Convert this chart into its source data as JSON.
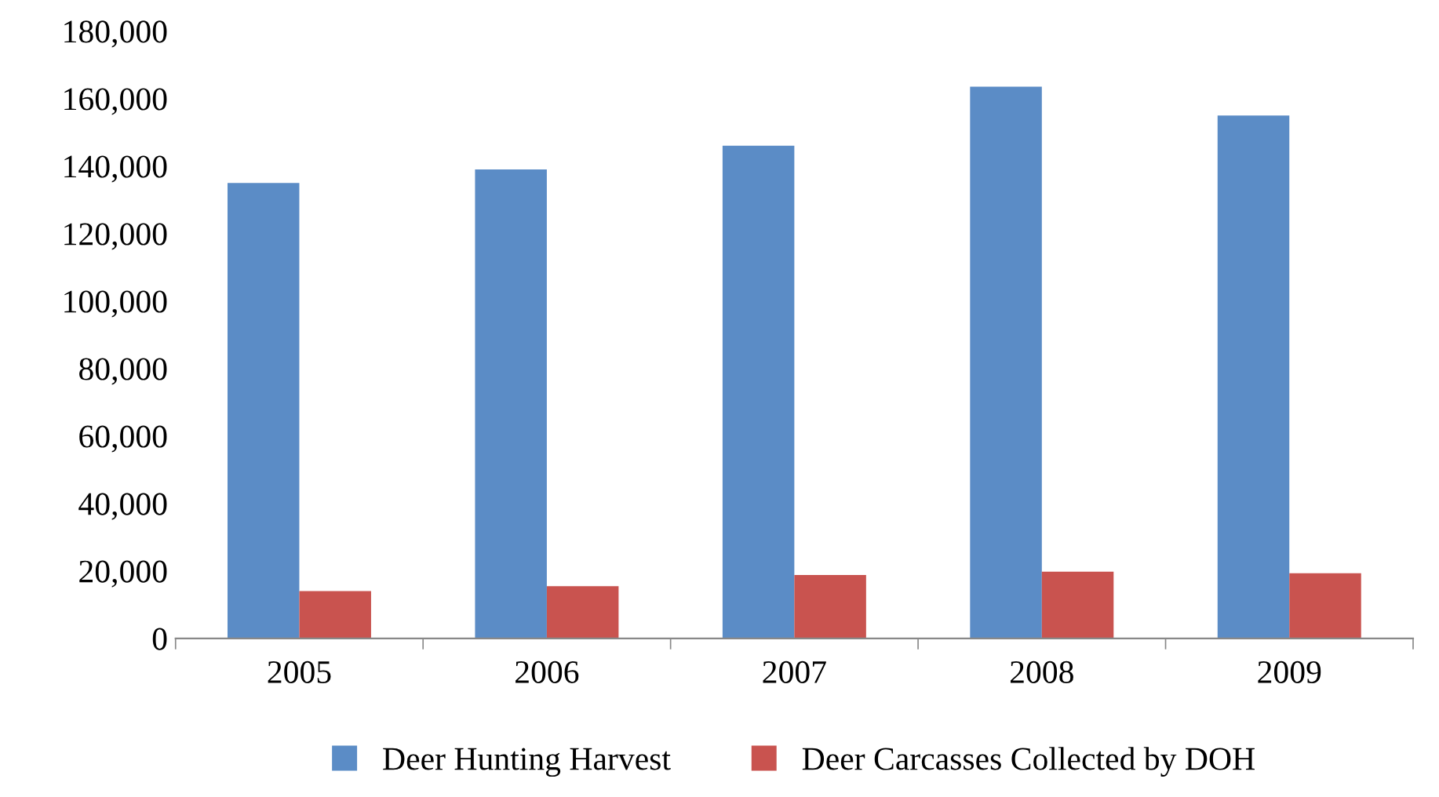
{
  "chart_data": {
    "type": "bar",
    "categories": [
      "2005",
      "2006",
      "2007",
      "2008",
      "2009"
    ],
    "series": [
      {
        "name": "Deer Hunting Harvest",
        "color": "#5b8cc6",
        "values": [
          135000,
          139000,
          146000,
          163500,
          155000
        ]
      },
      {
        "name": "Deer Carcasses Collected by DOH",
        "color": "#c9534f",
        "values": [
          14000,
          15500,
          18800,
          19800,
          19300
        ]
      }
    ],
    "ylim": [
      0,
      180000
    ],
    "yticks": [
      {
        "value": 0,
        "label": "0"
      },
      {
        "value": 20000,
        "label": "20,000"
      },
      {
        "value": 40000,
        "label": "40,000"
      },
      {
        "value": 60000,
        "label": "60,000"
      },
      {
        "value": 80000,
        "label": "80,000"
      },
      {
        "value": 100000,
        "label": "100,000"
      },
      {
        "value": 120000,
        "label": "120,000"
      },
      {
        "value": 140000,
        "label": "140,000"
      },
      {
        "value": 160000,
        "label": "160,000"
      },
      {
        "value": 180000,
        "label": "180,000"
      }
    ],
    "legend": "bottom",
    "grid": false
  }
}
